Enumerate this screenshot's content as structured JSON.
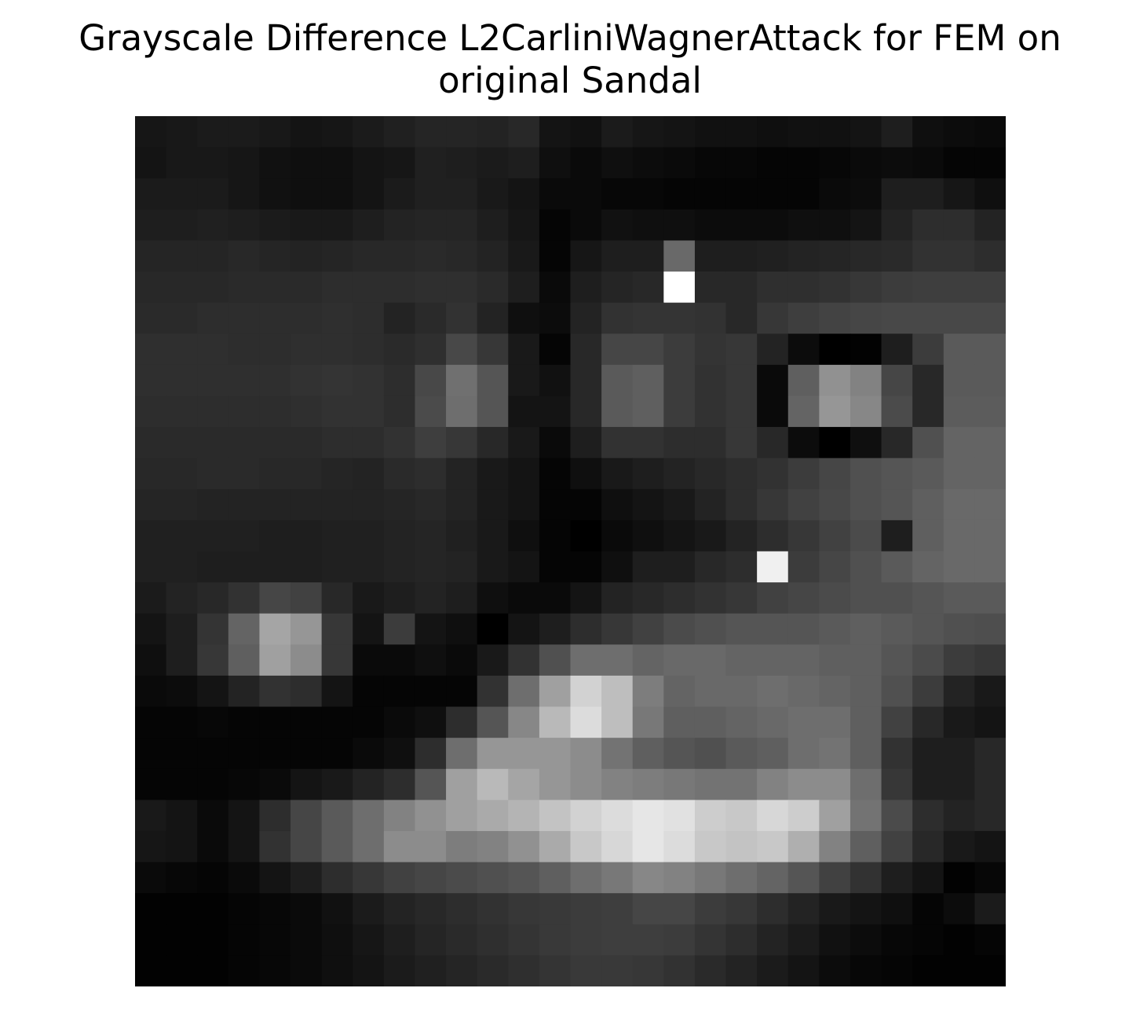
{
  "chart_data": {
    "type": "heatmap",
    "title_lines": [
      "Grayscale Difference L2CarliniWagnerAttack for FEM on",
      "original Sandal"
    ],
    "colormap": "gray",
    "axes": "off",
    "rows": 28,
    "cols": 28,
    "values": [
      [
        22,
        24,
        27,
        27,
        24,
        20,
        22,
        27,
        32,
        37,
        37,
        35,
        40,
        20,
        17,
        27,
        22,
        20,
        17,
        17,
        15,
        17,
        17,
        20,
        30,
        15,
        12,
        10
      ],
      [
        20,
        24,
        24,
        22,
        17,
        15,
        15,
        20,
        22,
        32,
        30,
        27,
        30,
        15,
        10,
        15,
        12,
        10,
        7,
        7,
        5,
        5,
        7,
        10,
        12,
        10,
        5,
        5
      ],
      [
        27,
        27,
        27,
        22,
        17,
        15,
        15,
        20,
        27,
        32,
        32,
        25,
        20,
        10,
        10,
        7,
        7,
        5,
        5,
        5,
        5,
        5,
        10,
        12,
        30,
        30,
        22,
        15
      ],
      [
        30,
        30,
        32,
        30,
        27,
        25,
        25,
        30,
        35,
        37,
        37,
        30,
        22,
        5,
        10,
        17,
        15,
        15,
        12,
        12,
        12,
        15,
        15,
        20,
        35,
        45,
        45,
        35
      ],
      [
        37,
        37,
        37,
        40,
        37,
        35,
        37,
        40,
        40,
        42,
        40,
        35,
        25,
        5,
        22,
        30,
        30,
        105,
        30,
        30,
        32,
        35,
        37,
        40,
        42,
        50,
        50,
        45
      ],
      [
        40,
        40,
        40,
        42,
        42,
        42,
        45,
        45,
        45,
        47,
        47,
        42,
        30,
        10,
        30,
        37,
        40,
        255,
        40,
        40,
        47,
        47,
        50,
        55,
        60,
        62,
        62,
        62
      ],
      [
        42,
        42,
        45,
        45,
        45,
        45,
        47,
        45,
        35,
        42,
        50,
        35,
        15,
        12,
        35,
        50,
        52,
        52,
        50,
        40,
        55,
        62,
        67,
        70,
        72,
        72,
        72,
        72
      ],
      [
        47,
        47,
        47,
        45,
        45,
        47,
        47,
        45,
        42,
        47,
        72,
        55,
        25,
        5,
        40,
        70,
        70,
        60,
        52,
        55,
        35,
        12,
        0,
        2,
        30,
        60,
        90,
        90
      ],
      [
        47,
        47,
        47,
        47,
        47,
        50,
        52,
        50,
        45,
        72,
        112,
        85,
        25,
        17,
        40,
        90,
        95,
        60,
        50,
        55,
        10,
        95,
        145,
        130,
        70,
        40,
        90,
        90
      ],
      [
        45,
        45,
        45,
        45,
        45,
        47,
        50,
        50,
        45,
        75,
        110,
        85,
        20,
        20,
        40,
        90,
        95,
        60,
        50,
        55,
        10,
        100,
        150,
        135,
        75,
        40,
        92,
        92
      ],
      [
        42,
        42,
        42,
        42,
        42,
        42,
        45,
        45,
        50,
        62,
        55,
        40,
        25,
        10,
        30,
        50,
        50,
        45,
        45,
        55,
        40,
        12,
        0,
        15,
        40,
        80,
        100,
        100
      ],
      [
        40,
        40,
        42,
        42,
        40,
        40,
        37,
        35,
        42,
        45,
        35,
        25,
        20,
        5,
        15,
        25,
        30,
        35,
        40,
        45,
        50,
        60,
        70,
        80,
        85,
        90,
        100,
        100
      ],
      [
        37,
        37,
        35,
        35,
        35,
        35,
        35,
        35,
        37,
        40,
        35,
        25,
        20,
        5,
        5,
        15,
        20,
        25,
        35,
        45,
        55,
        65,
        72,
        80,
        85,
        95,
        105,
        105
      ],
      [
        32,
        32,
        32,
        32,
        30,
        30,
        32,
        32,
        35,
        37,
        32,
        25,
        15,
        5,
        0,
        10,
        15,
        20,
        25,
        35,
        45,
        55,
        65,
        75,
        30,
        95,
        105,
        105
      ],
      [
        32,
        32,
        30,
        30,
        30,
        30,
        32,
        32,
        35,
        37,
        35,
        25,
        20,
        5,
        5,
        15,
        30,
        30,
        40,
        45,
        240,
        60,
        70,
        80,
        90,
        100,
        105,
        105
      ],
      [
        27,
        35,
        40,
        50,
        70,
        65,
        40,
        25,
        30,
        35,
        30,
        15,
        10,
        10,
        20,
        35,
        40,
        45,
        50,
        55,
        65,
        70,
        75,
        80,
        80,
        85,
        90,
        90
      ],
      [
        20,
        30,
        52,
        100,
        165,
        150,
        55,
        20,
        60,
        20,
        15,
        0,
        20,
        30,
        45,
        55,
        65,
        75,
        80,
        85,
        85,
        85,
        90,
        95,
        90,
        85,
        80,
        78
      ],
      [
        15,
        30,
        55,
        95,
        160,
        140,
        55,
        10,
        10,
        15,
        10,
        25,
        50,
        80,
        110,
        110,
        100,
        105,
        105,
        100,
        100,
        100,
        95,
        95,
        85,
        75,
        60,
        55
      ],
      [
        10,
        12,
        20,
        35,
        50,
        45,
        20,
        5,
        5,
        5,
        5,
        50,
        110,
        160,
        210,
        190,
        125,
        100,
        105,
        105,
        110,
        105,
        100,
        95,
        80,
        60,
        35,
        25
      ],
      [
        5,
        5,
        7,
        5,
        5,
        5,
        5,
        5,
        10,
        15,
        45,
        85,
        135,
        185,
        220,
        190,
        120,
        95,
        95,
        100,
        105,
        110,
        110,
        95,
        65,
        40,
        25,
        20
      ],
      [
        5,
        5,
        5,
        5,
        5,
        5,
        5,
        10,
        15,
        45,
        110,
        150,
        150,
        150,
        140,
        115,
        95,
        85,
        80,
        90,
        95,
        110,
        115,
        95,
        50,
        30,
        30,
        40
      ],
      [
        5,
        5,
        5,
        7,
        10,
        20,
        25,
        35,
        45,
        85,
        160,
        185,
        165,
        150,
        140,
        130,
        125,
        120,
        115,
        115,
        130,
        140,
        140,
        110,
        55,
        30,
        30,
        40
      ],
      [
        25,
        20,
        10,
        20,
        45,
        70,
        90,
        110,
        130,
        145,
        160,
        170,
        180,
        195,
        210,
        220,
        230,
        225,
        205,
        200,
        215,
        205,
        160,
        115,
        75,
        45,
        35,
        40
      ],
      [
        22,
        20,
        10,
        20,
        50,
        70,
        90,
        110,
        140,
        140,
        125,
        130,
        145,
        170,
        200,
        215,
        230,
        220,
        200,
        195,
        200,
        175,
        130,
        95,
        65,
        40,
        25,
        20
      ],
      [
        10,
        7,
        5,
        10,
        20,
        30,
        45,
        55,
        65,
        70,
        75,
        80,
        85,
        95,
        110,
        120,
        135,
        130,
        120,
        110,
        100,
        85,
        65,
        50,
        30,
        20,
        2,
        7
      ],
      [
        2,
        2,
        2,
        5,
        7,
        10,
        17,
        27,
        35,
        40,
        45,
        50,
        55,
        57,
        60,
        62,
        70,
        70,
        60,
        55,
        45,
        35,
        25,
        20,
        15,
        5,
        12,
        27
      ],
      [
        2,
        2,
        2,
        5,
        7,
        10,
        15,
        22,
        30,
        37,
        42,
        47,
        52,
        57,
        60,
        62,
        62,
        60,
        52,
        45,
        35,
        27,
        17,
        12,
        7,
        5,
        2,
        5
      ],
      [
        2,
        2,
        2,
        5,
        7,
        10,
        15,
        20,
        27,
        32,
        37,
        42,
        47,
        52,
        57,
        57,
        55,
        50,
        42,
        35,
        27,
        20,
        12,
        7,
        5,
        2,
        2,
        2
      ]
    ]
  }
}
